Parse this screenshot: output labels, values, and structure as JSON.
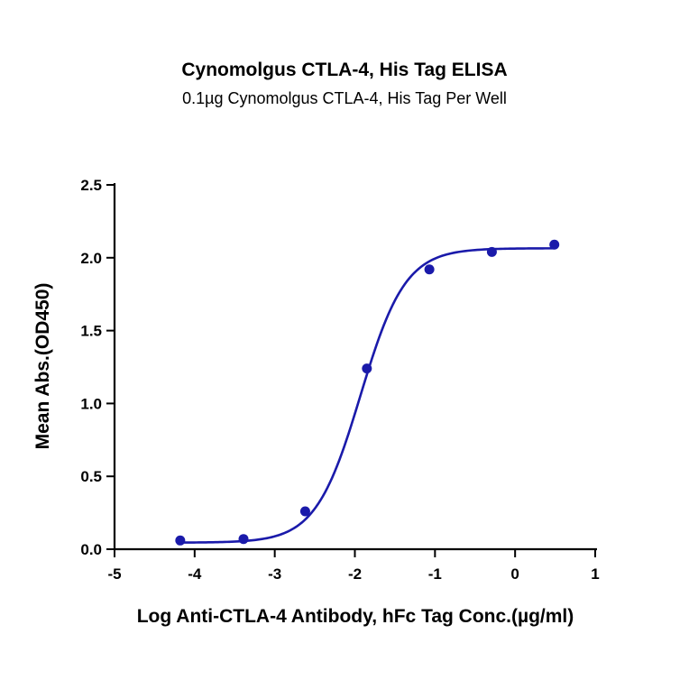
{
  "chart_data": {
    "type": "scatter",
    "title": "Cynomolgus CTLA-4, His Tag ELISA",
    "subtitle": "0.1µg Cynomolgus CTLA-4, His Tag Per Well",
    "xlabel": "Log Anti-CTLA-4 Antibody, hFc Tag Conc.(µg/ml)",
    "ylabel": "Mean Abs.(OD450)",
    "xlim": [
      -5,
      1
    ],
    "ylim": [
      0,
      2.5
    ],
    "xticks": [
      "-5",
      "-4",
      "-3",
      "-2",
      "-1",
      "0",
      "1"
    ],
    "yticks": [
      "0.0",
      "0.5",
      "1.0",
      "1.5",
      "2.0",
      "2.5"
    ],
    "grid": false,
    "series": [
      {
        "points": [
          {
            "x": -4.18,
            "y": 0.06
          },
          {
            "x": -3.39,
            "y": 0.07
          },
          {
            "x": -2.62,
            "y": 0.26
          },
          {
            "x": -1.85,
            "y": 1.24
          },
          {
            "x": -1.07,
            "y": 1.92
          },
          {
            "x": -0.29,
            "y": 2.04
          },
          {
            "x": 0.49,
            "y": 2.09
          }
        ],
        "fit": {
          "model": "4PL",
          "bottom": 0.045,
          "top": 2.065,
          "logEC50": -1.93,
          "hill": 1.55
        },
        "color": "#1a1aaa"
      }
    ]
  }
}
